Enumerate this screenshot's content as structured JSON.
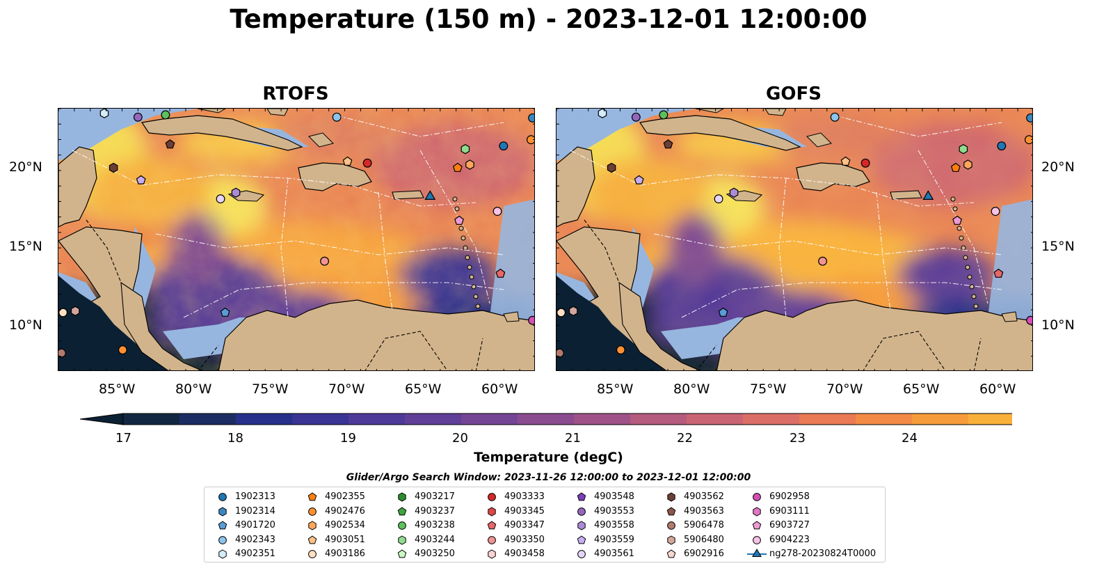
{
  "title": "Temperature (150 m) - 2023-12-01 12:00:00",
  "panels": [
    {
      "title": "RTOFS",
      "mode": "rtofs"
    },
    {
      "title": "GOFS",
      "mode": "gofs"
    }
  ],
  "axes": {
    "lat_labels": [
      "20°N",
      "15°N",
      "10°N"
    ],
    "lon_labels": [
      "85°W",
      "80°W",
      "75°W",
      "70°W",
      "65°W",
      "60°W"
    ]
  },
  "colorbar": {
    "label": "Temperature (degC)",
    "ticks": [
      "17",
      "18",
      "19",
      "20",
      "21",
      "22",
      "23",
      "24"
    ],
    "min": 16.5,
    "max": 24.5,
    "colors": [
      "#0b2033",
      "#122742",
      "#1c2d63",
      "#27308a",
      "#3a3494",
      "#4e3a98",
      "#5f3f98",
      "#744595",
      "#8a4b8f",
      "#9f5288",
      "#b55b7e",
      "#c96474",
      "#db6e66",
      "#ea7a55",
      "#f38b45",
      "#f79c3a",
      "#f9b03a",
      "#fac445",
      "#f7dd56"
    ]
  },
  "legend": {
    "title": "Glider/Argo Search Window: 2023-11-26 12:00:00 to 2023-12-01 12:00:00",
    "columns": [
      [
        {
          "label": "1902313",
          "marker": "circle",
          "color": "#1f77b4"
        },
        {
          "label": "1902314",
          "marker": "hexagon",
          "color": "#3b87c0"
        },
        {
          "label": "4901720",
          "marker": "pentagon",
          "color": "#5b9bd5"
        },
        {
          "label": "4902343",
          "marker": "circle",
          "color": "#8cc4ec"
        },
        {
          "label": "4902351",
          "marker": "hexagon",
          "color": "#d4ecf9"
        }
      ],
      [
        {
          "label": "4902355",
          "marker": "pentagon",
          "color": "#ff7f0e"
        },
        {
          "label": "4902476",
          "marker": "circle",
          "color": "#ff9133"
        },
        {
          "label": "4902534",
          "marker": "hexagon",
          "color": "#ffa65c"
        },
        {
          "label": "4903051",
          "marker": "pentagon",
          "color": "#ffc189"
        },
        {
          "label": "4903186",
          "marker": "circle",
          "color": "#ffe0c2"
        }
      ],
      [
        {
          "label": "4903217",
          "marker": "hexagon",
          "color": "#2c8c2c"
        },
        {
          "label": "4903237",
          "marker": "pentagon",
          "color": "#3ea43e"
        },
        {
          "label": "4903238",
          "marker": "circle",
          "color": "#5cc05c"
        },
        {
          "label": "4903244",
          "marker": "hexagon",
          "color": "#8fdc8f"
        },
        {
          "label": "4903250",
          "marker": "pentagon",
          "color": "#ccf7c4"
        }
      ],
      [
        {
          "label": "4903333",
          "marker": "circle",
          "color": "#d62728"
        },
        {
          "label": "4903345",
          "marker": "hexagon",
          "color": "#e04646"
        },
        {
          "label": "4903347",
          "marker": "pentagon",
          "color": "#e86868"
        },
        {
          "label": "4903350",
          "marker": "circle",
          "color": "#f09393"
        },
        {
          "label": "4903458",
          "marker": "hexagon",
          "color": "#fbd2d2"
        }
      ],
      [
        {
          "label": "4903548",
          "marker": "pentagon",
          "color": "#7b3fb8"
        },
        {
          "label": "4903553",
          "marker": "circle",
          "color": "#9467bd"
        },
        {
          "label": "4903558",
          "marker": "hexagon",
          "color": "#ad8ad6"
        },
        {
          "label": "4903559",
          "marker": "pentagon",
          "color": "#c7aef0"
        },
        {
          "label": "4903561",
          "marker": "circle",
          "color": "#e6d5fb"
        }
      ],
      [
        {
          "label": "4903562",
          "marker": "hexagon",
          "color": "#6b3f36"
        },
        {
          "label": "4903563",
          "marker": "pentagon",
          "color": "#8c564b"
        },
        {
          "label": "5906478",
          "marker": "circle",
          "color": "#b07a6e"
        },
        {
          "label": "5906480",
          "marker": "hexagon",
          "color": "#d4a69b"
        },
        {
          "label": "6902916",
          "marker": "pentagon",
          "color": "#f4d7cf"
        }
      ],
      [
        {
          "label": "6902958",
          "marker": "circle",
          "color": "#d44fb4"
        },
        {
          "label": "6903111",
          "marker": "hexagon",
          "color": "#e377c2"
        },
        {
          "label": "6903727",
          "marker": "pentagon",
          "color": "#ec9ad3"
        },
        {
          "label": "6904223",
          "marker": "circle",
          "color": "#f7c2e6"
        },
        {
          "label": "ng278-20230824T0000",
          "marker": "triangle-line",
          "color": "#1f77b4"
        }
      ]
    ]
  },
  "markers": [
    {
      "lon": -84.0,
      "lat": 23.35,
      "marker": "circle",
      "color": "#9467bd"
    },
    {
      "lon": -82.2,
      "lat": 23.5,
      "marker": "circle",
      "color": "#5cc05c"
    },
    {
      "lon": -86.2,
      "lat": 23.6,
      "marker": "hexagon",
      "color": "#d4ecf9"
    },
    {
      "lon": -71.0,
      "lat": 23.35,
      "marker": "circle",
      "color": "#8cc4ec"
    },
    {
      "lon": -85.6,
      "lat": 20.1,
      "marker": "hexagon",
      "color": "#6b3f36"
    },
    {
      "lon": -83.8,
      "lat": 19.3,
      "marker": "pentagon",
      "color": "#c7aef0"
    },
    {
      "lon": -81.9,
      "lat": 21.6,
      "marker": "pentagon",
      "color": "#6b3f36"
    },
    {
      "lon": -70.3,
      "lat": 20.5,
      "marker": "pentagon",
      "color": "#ffc189"
    },
    {
      "lon": -69.0,
      "lat": 20.4,
      "marker": "circle",
      "color": "#d62728"
    },
    {
      "lon": -62.6,
      "lat": 21.3,
      "marker": "hexagon",
      "color": "#8fdc8f"
    },
    {
      "lon": -60.1,
      "lat": 21.5,
      "marker": "circle",
      "color": "#1f77b4"
    },
    {
      "lon": -63.1,
      "lat": 20.1,
      "marker": "pentagon",
      "color": "#ff7f0e"
    },
    {
      "lon": -62.3,
      "lat": 20.3,
      "marker": "hexagon",
      "color": "#ffa65c"
    },
    {
      "lon": -77.6,
      "lat": 18.5,
      "marker": "hexagon",
      "color": "#ad8ad6"
    },
    {
      "lon": -78.6,
      "lat": 18.1,
      "marker": "circle",
      "color": "#e6d5fb"
    },
    {
      "lon": -60.5,
      "lat": 17.3,
      "marker": "circle",
      "color": "#f7c2e6"
    },
    {
      "lon": -63.0,
      "lat": 16.7,
      "marker": "pentagon",
      "color": "#ec9ad3"
    },
    {
      "lon": -71.8,
      "lat": 14.1,
      "marker": "circle",
      "color": "#f09393"
    },
    {
      "lon": -60.3,
      "lat": 13.3,
      "marker": "pentagon",
      "color": "#e86868"
    },
    {
      "lon": -78.3,
      "lat": 10.8,
      "marker": "pentagon",
      "color": "#5b9bd5"
    },
    {
      "lon": -88.9,
      "lat": 10.8,
      "marker": "circle",
      "color": "#ffe0c2"
    },
    {
      "lon": -88.1,
      "lat": 10.9,
      "marker": "hexagon",
      "color": "#d4a69b"
    },
    {
      "lon": -58.2,
      "lat": 10.3,
      "marker": "circle",
      "color": "#d44fb4"
    },
    {
      "lon": -85.0,
      "lat": 8.4,
      "marker": "circle",
      "color": "#ff9133"
    },
    {
      "lon": -89.0,
      "lat": 8.2,
      "marker": "circle",
      "color": "#b07a6e"
    },
    {
      "lon": -58.2,
      "lat": 23.3,
      "marker": "circle",
      "color": "#3b87c0"
    },
    {
      "lon": -58.3,
      "lat": 21.9,
      "marker": "circle",
      "color": "#ff9133"
    },
    {
      "lon": -64.9,
      "lat": 18.25,
      "marker": "triangle",
      "color": "#1f77b4"
    }
  ]
}
